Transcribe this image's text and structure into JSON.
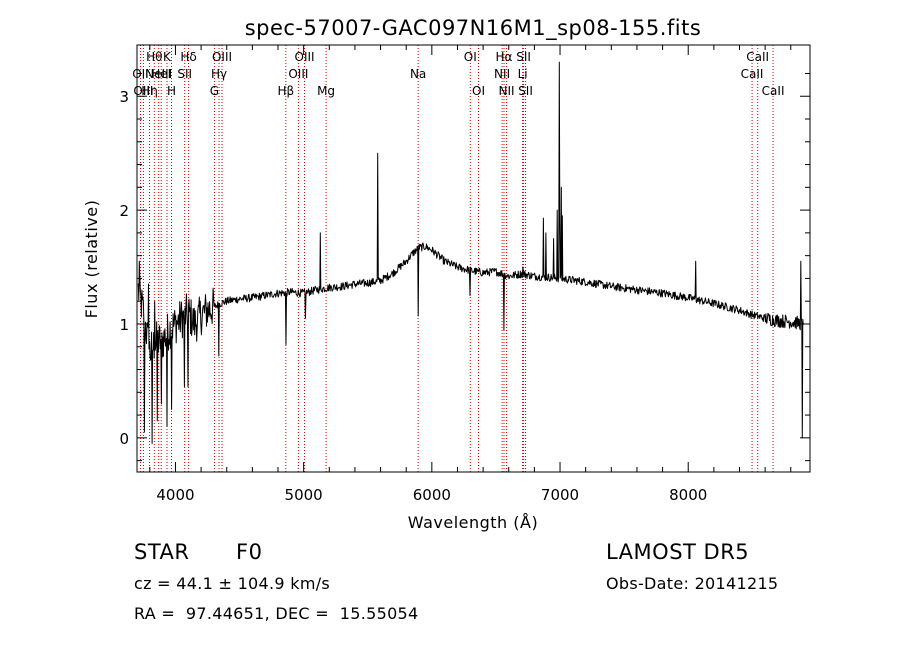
{
  "chart_data": {
    "type": "line",
    "title": "spec-57007-GAC097N16M1_sp08-155.fits",
    "xlabel": "Wavelength (Å)",
    "ylabel": "Flux (relative)",
    "xlim": [
      3700,
      8950
    ],
    "ylim": [
      -0.3,
      3.45
    ],
    "x_ticks": [
      4000,
      5000,
      6000,
      7000,
      8000
    ],
    "y_ticks": [
      0,
      1,
      2,
      3
    ],
    "grid": false,
    "line_color": "#000000",
    "marker_color": "#cc0000",
    "continuum": [
      [
        3710,
        1.3
      ],
      [
        3750,
        1.1
      ],
      [
        3800,
        0.75
      ],
      [
        3850,
        0.85
      ],
      [
        3900,
        0.85
      ],
      [
        3950,
        0.95
      ],
      [
        4000,
        1.0
      ],
      [
        4050,
        1.05
      ],
      [
        4100,
        1.1
      ],
      [
        4150,
        1.0
      ],
      [
        4200,
        1.08
      ],
      [
        4250,
        1.12
      ],
      [
        4300,
        1.15
      ],
      [
        4350,
        1.18
      ],
      [
        4400,
        1.2
      ],
      [
        4500,
        1.22
      ],
      [
        4600,
        1.23
      ],
      [
        4700,
        1.25
      ],
      [
        4800,
        1.27
      ],
      [
        4900,
        1.28
      ],
      [
        5000,
        1.27
      ],
      [
        5100,
        1.3
      ],
      [
        5200,
        1.32
      ],
      [
        5300,
        1.33
      ],
      [
        5400,
        1.35
      ],
      [
        5500,
        1.36
      ],
      [
        5600,
        1.38
      ],
      [
        5700,
        1.45
      ],
      [
        5800,
        1.55
      ],
      [
        5850,
        1.62
      ],
      [
        5900,
        1.67
      ],
      [
        5950,
        1.68
      ],
      [
        6000,
        1.65
      ],
      [
        6100,
        1.55
      ],
      [
        6200,
        1.5
      ],
      [
        6300,
        1.47
      ],
      [
        6400,
        1.45
      ],
      [
        6500,
        1.46
      ],
      [
        6600,
        1.42
      ],
      [
        6700,
        1.44
      ],
      [
        6800,
        1.42
      ],
      [
        6900,
        1.41
      ],
      [
        7000,
        1.4
      ],
      [
        7200,
        1.37
      ],
      [
        7400,
        1.33
      ],
      [
        7600,
        1.3
      ],
      [
        7800,
        1.27
      ],
      [
        8000,
        1.23
      ],
      [
        8200,
        1.18
      ],
      [
        8400,
        1.12
      ],
      [
        8500,
        1.08
      ],
      [
        8600,
        1.05
      ],
      [
        8700,
        1.03
      ],
      [
        8800,
        1.02
      ],
      [
        8900,
        1.0
      ]
    ],
    "features": [
      [
        3720,
        1.55
      ],
      [
        3760,
        0.05
      ],
      [
        3790,
        1.35
      ],
      [
        3820,
        -0.05
      ],
      [
        3840,
        1.2
      ],
      [
        3860,
        0.15
      ],
      [
        3890,
        0.3
      ],
      [
        3935,
        0.1
      ],
      [
        3970,
        0.25
      ],
      [
        4070,
        0.45
      ],
      [
        4100,
        0.45
      ],
      [
        4340,
        0.72
      ],
      [
        4861,
        0.82
      ],
      [
        5015,
        1.05
      ],
      [
        5130,
        1.8
      ],
      [
        5577,
        2.5
      ],
      [
        5893,
        1.07
      ],
      [
        6300,
        1.25
      ],
      [
        6563,
        0.95
      ],
      [
        6710,
        1.5
      ],
      [
        6870,
        1.93
      ],
      [
        6890,
        1.8
      ],
      [
        6950,
        1.75
      ],
      [
        6980,
        2.0
      ],
      [
        6995,
        3.3
      ],
      [
        7000,
        1.9
      ],
      [
        7010,
        2.2
      ],
      [
        7020,
        1.95
      ],
      [
        8060,
        1.55
      ],
      [
        8880,
        1.55
      ],
      [
        8890,
        0.0
      ]
    ],
    "lines": [
      {
        "x": 3727,
        "label": "OII",
        "row": 2
      },
      {
        "x": 3750,
        "label": "OIII",
        "row": 3
      },
      {
        "x": 3798,
        "label": "Hη",
        "row": 3
      },
      {
        "x": 3835,
        "label": "Hθ",
        "row": 1
      },
      {
        "x": 3869,
        "label": "NeIII",
        "row": 2
      },
      {
        "x": 3889,
        "label": "HeI",
        "row": 2
      },
      {
        "x": 3934,
        "label": "K",
        "row": 1
      },
      {
        "x": 3969,
        "label": "H",
        "row": 3
      },
      {
        "x": 4072,
        "label": "SII",
        "row": 2
      },
      {
        "x": 4102,
        "label": "Hδ",
        "row": 1
      },
      {
        "x": 4304,
        "label": "G",
        "row": 3
      },
      {
        "x": 4340,
        "label": "Hγ",
        "row": 2
      },
      {
        "x": 4363,
        "label": "OIII",
        "row": 1
      },
      {
        "x": 4861,
        "label": "Hβ",
        "row": 3
      },
      {
        "x": 4959,
        "label": "OIII",
        "row": 2
      },
      {
        "x": 5007,
        "label": "OIII",
        "row": 1
      },
      {
        "x": 5175,
        "label": "Mg",
        "row": 3
      },
      {
        "x": 5893,
        "label": "Na",
        "row": 2
      },
      {
        "x": 6300,
        "label": "OI",
        "row": 1
      },
      {
        "x": 6364,
        "label": "OI",
        "row": 3
      },
      {
        "x": 6548,
        "label": "NII",
        "row": 2
      },
      {
        "x": 6563,
        "label": "Hα",
        "row": 1
      },
      {
        "x": 6583,
        "label": "NII",
        "row": 3
      },
      {
        "x": 6708,
        "label": "Li",
        "row": 2
      },
      {
        "x": 6716,
        "label": "SII",
        "row": 1
      },
      {
        "x": 6731,
        "label": "SII",
        "row": 3
      },
      {
        "x": 8498,
        "label": "CaII",
        "row": 2
      },
      {
        "x": 8542,
        "label": "CaII",
        "row": 1
      },
      {
        "x": 8662,
        "label": "CaII",
        "row": 3
      }
    ]
  },
  "footer": {
    "object_class": "STAR",
    "subclass": "F0",
    "cz": "cz = 44.1 ± 104.9 km/s",
    "radec": "RA =  97.44651, DEC =  15.55054",
    "survey": "LAMOST DR5",
    "obs_date": "Obs-Date: 20141215"
  }
}
